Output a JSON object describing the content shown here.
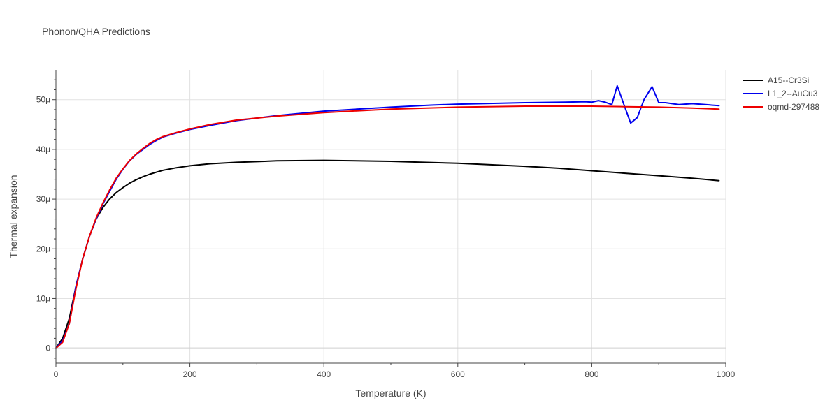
{
  "chart_data": {
    "type": "line",
    "title": "Phonon/QHA Predictions",
    "xlabel": "Temperature (K)",
    "ylabel": "Thermal expansion",
    "xlim": [
      0,
      1000
    ],
    "ylim": [
      -3,
      56
    ],
    "x_ticks": [
      0,
      200,
      400,
      600,
      800,
      1000
    ],
    "x_tick_labels": [
      "0",
      "200",
      "400",
      "600",
      "800",
      "1000"
    ],
    "y_ticks": [
      0,
      10,
      20,
      30,
      40,
      50
    ],
    "y_tick_labels": [
      "0",
      "10μ",
      "20μ",
      "30μ",
      "40μ",
      "50μ"
    ],
    "y_unit_note": "values in units of 1e-6 (μ)",
    "grid": true,
    "legend_position": "top-right",
    "series": [
      {
        "name": "A15--Cr3Si",
        "color": "#000000",
        "x": [
          0,
          10,
          20,
          30,
          40,
          50,
          60,
          70,
          80,
          90,
          100,
          110,
          120,
          130,
          140,
          150,
          160,
          180,
          200,
          230,
          270,
          330,
          400,
          500,
          600,
          700,
          750,
          800,
          850,
          900,
          950,
          990
        ],
        "y": [
          0,
          2,
          6,
          12.5,
          18,
          22.5,
          26,
          28.3,
          30,
          31.3,
          32.3,
          33.2,
          33.9,
          34.5,
          35,
          35.4,
          35.8,
          36.3,
          36.7,
          37.1,
          37.4,
          37.7,
          37.8,
          37.6,
          37.2,
          36.6,
          36.2,
          35.7,
          35.2,
          34.7,
          34.2,
          33.7
        ]
      },
      {
        "name": "L1_2--AuCu3",
        "color": "#0000ee",
        "x": [
          0,
          10,
          20,
          30,
          40,
          50,
          60,
          70,
          80,
          90,
          100,
          110,
          120,
          130,
          140,
          150,
          160,
          180,
          200,
          230,
          270,
          330,
          400,
          500,
          560,
          600,
          700,
          760,
          790,
          800,
          810,
          820,
          830,
          838,
          848,
          858,
          868,
          878,
          890,
          900,
          910,
          930,
          950,
          970,
          990
        ],
        "y": [
          0,
          1.5,
          5,
          12.5,
          18,
          22.5,
          26,
          29,
          31.5,
          34,
          36,
          37.7,
          39,
          40,
          41,
          41.8,
          42.5,
          43.3,
          44,
          44.8,
          45.8,
          46.8,
          47.7,
          48.5,
          48.9,
          49.1,
          49.4,
          49.5,
          49.6,
          49.5,
          49.8,
          49.5,
          49,
          52.8,
          49,
          45.3,
          46.4,
          50,
          52.6,
          49.4,
          49.4,
          49,
          49.2,
          49,
          48.8
        ]
      },
      {
        "name": "oqmd-297488",
        "color": "#ee0000",
        "x": [
          0,
          10,
          20,
          30,
          40,
          50,
          60,
          70,
          80,
          90,
          100,
          110,
          120,
          130,
          140,
          150,
          160,
          180,
          200,
          230,
          270,
          330,
          400,
          500,
          600,
          700,
          750,
          800,
          850,
          900,
          950,
          990
        ],
        "y": [
          0,
          1.2,
          5,
          12,
          18,
          22.5,
          26.2,
          29.2,
          31.8,
          34.2,
          36.1,
          37.8,
          39.1,
          40.2,
          41.2,
          42,
          42.6,
          43.4,
          44.1,
          45,
          45.9,
          46.7,
          47.4,
          48.1,
          48.5,
          48.7,
          48.7,
          48.7,
          48.6,
          48.5,
          48.3,
          48.1
        ]
      }
    ]
  }
}
